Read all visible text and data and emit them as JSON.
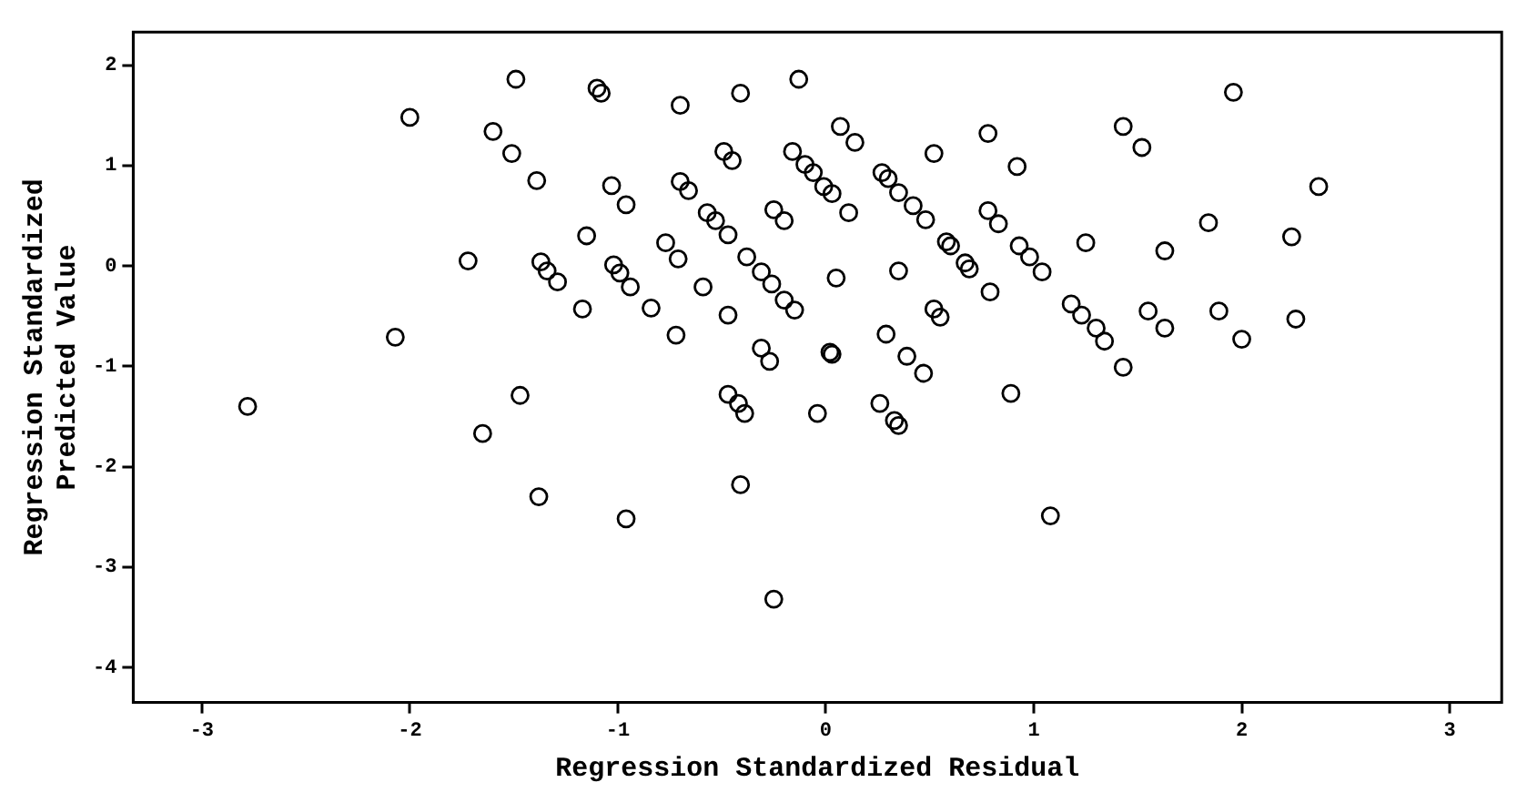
{
  "chart_data": {
    "type": "scatter",
    "xlabel": "Regression Standardized Residual",
    "ylabel": "Regression Standardized Predicted Value",
    "xlim": [
      -3.33,
      3.25
    ],
    "ylim": [
      -4.35,
      2.33
    ],
    "xticks": [
      -3,
      -2,
      -1,
      0,
      1,
      2,
      3
    ],
    "yticks": [
      -4,
      -3,
      -2,
      -1,
      0,
      1,
      2
    ],
    "grid": false,
    "legend": false,
    "marker": "circle",
    "series": [
      {
        "color": "#000000",
        "x": [
          -1.49,
          -2.0,
          -1.1,
          -1.08,
          -1.6,
          -1.51,
          -1.39,
          -1.03,
          -0.96,
          -1.15,
          -1.72,
          -1.37,
          -1.34,
          -1.29,
          -1.02,
          -0.99,
          -0.94,
          -1.17,
          -2.07,
          -1.47,
          -2.78,
          -0.7,
          -0.41,
          -0.13,
          0.07,
          0.14,
          0.52,
          0.78,
          0.92,
          1.43,
          -0.49,
          -0.45,
          -0.16,
          -0.1,
          -0.06,
          -0.01,
          0.03,
          0.11,
          0.27,
          0.3,
          0.35,
          0.42,
          0.48,
          -0.7,
          -0.66,
          -0.57,
          -0.53,
          -0.47,
          -0.25,
          -0.2,
          -0.77,
          -0.71,
          -0.38,
          -0.31,
          -0.26,
          -0.2,
          -0.15,
          -0.59,
          -0.84,
          -0.72,
          -0.47,
          -0.31,
          -0.27,
          0.02,
          0.03,
          0.05,
          0.35,
          0.58,
          0.6,
          0.67,
          0.69,
          0.79,
          0.52,
          0.55,
          0.78,
          0.83,
          0.93,
          0.98,
          1.04,
          1.25,
          1.18,
          1.23,
          1.3,
          1.34,
          1.43,
          0.29,
          0.39,
          0.47,
          -0.47,
          -0.42,
          -0.39,
          -0.04,
          0.26,
          0.33,
          0.35,
          0.89,
          1.52,
          1.96,
          2.37,
          1.84,
          2.24,
          1.63,
          1.55,
          1.63,
          1.89,
          2.26,
          2.0,
          -1.65,
          -1.38,
          -0.96,
          -0.41,
          1.08,
          -0.25
        ],
        "values": [
          1.86,
          1.48,
          1.77,
          1.72,
          1.34,
          1.12,
          0.85,
          0.8,
          0.61,
          0.3,
          0.05,
          0.04,
          -0.05,
          -0.16,
          0.01,
          -0.07,
          -0.21,
          -0.43,
          -0.71,
          -1.29,
          -1.4,
          1.6,
          1.72,
          1.86,
          1.39,
          1.23,
          1.12,
          1.32,
          0.99,
          1.39,
          1.14,
          1.05,
          1.14,
          1.01,
          0.93,
          0.79,
          0.72,
          0.53,
          0.93,
          0.87,
          0.73,
          0.6,
          0.46,
          0.84,
          0.75,
          0.53,
          0.45,
          0.31,
          0.56,
          0.45,
          0.23,
          0.07,
          0.09,
          -0.06,
          -0.18,
          -0.34,
          -0.44,
          -0.21,
          -0.42,
          -0.69,
          -0.49,
          -0.82,
          -0.95,
          -0.86,
          -0.88,
          -0.12,
          -0.05,
          0.24,
          0.2,
          0.03,
          -0.03,
          -0.26,
          -0.43,
          -0.51,
          0.55,
          0.42,
          0.2,
          0.09,
          -0.06,
          0.23,
          -0.38,
          -0.49,
          -0.62,
          -0.75,
          -1.01,
          -0.68,
          -0.9,
          -1.07,
          -1.28,
          -1.37,
          -1.47,
          -1.47,
          -1.37,
          -1.54,
          -1.59,
          -1.27,
          1.18,
          1.73,
          0.79,
          0.43,
          0.29,
          0.15,
          -0.45,
          -0.62,
          -0.45,
          -0.53,
          -0.73,
          -1.67,
          -2.3,
          -2.52,
          -2.18,
          -2.49,
          -3.32
        ]
      }
    ]
  }
}
